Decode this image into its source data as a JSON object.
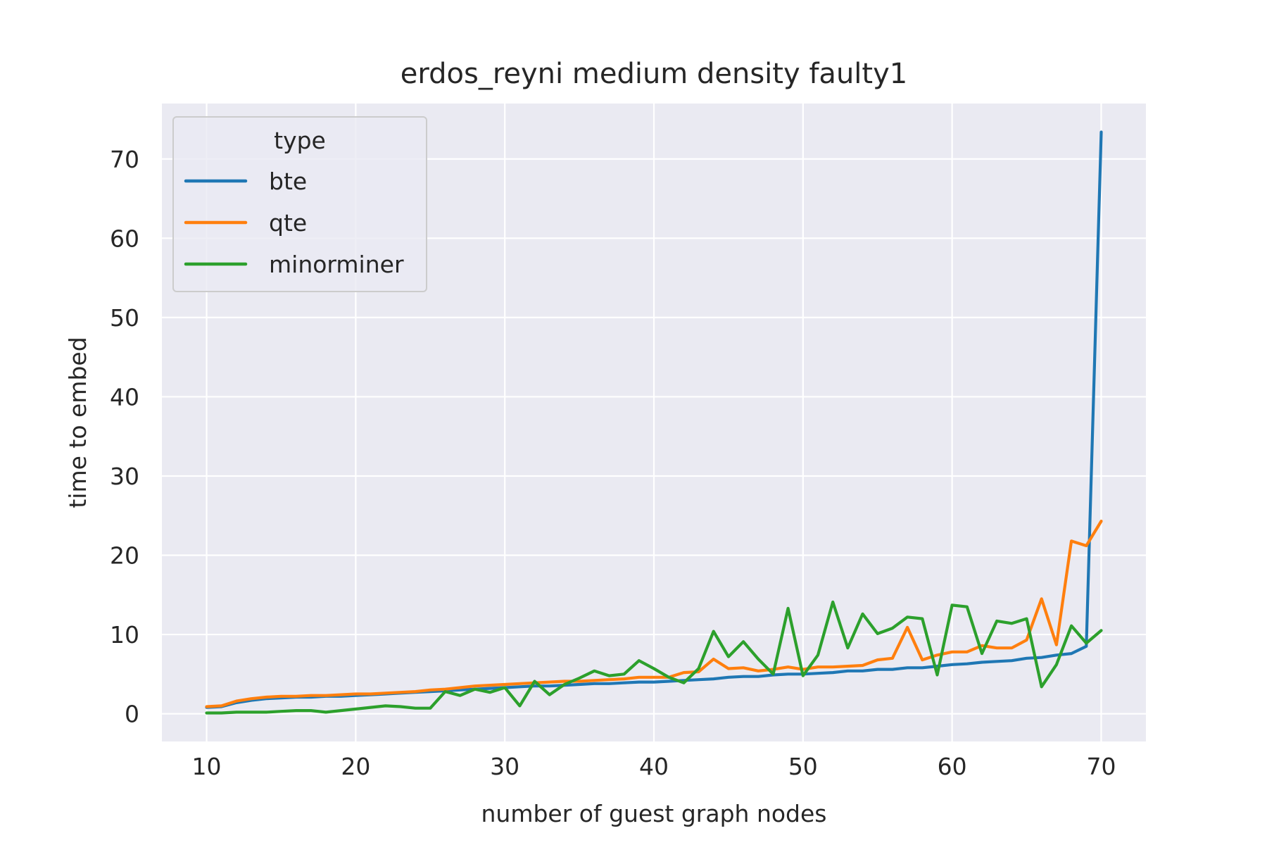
{
  "chart_data": {
    "type": "line",
    "title": "erdos_reyni medium density faulty1",
    "xlabel": "number of guest graph nodes",
    "ylabel": "time to embed",
    "xlim": [
      7,
      73
    ],
    "ylim": [
      -3.5,
      77
    ],
    "xticks": [
      10,
      20,
      30,
      40,
      50,
      60,
      70
    ],
    "yticks": [
      0,
      10,
      20,
      30,
      40,
      50,
      60,
      70
    ],
    "grid": true,
    "legend": {
      "title": "type",
      "placement": "top-left"
    },
    "x": [
      10,
      11,
      12,
      13,
      14,
      15,
      16,
      17,
      18,
      19,
      20,
      21,
      22,
      23,
      24,
      25,
      26,
      27,
      28,
      29,
      30,
      31,
      32,
      33,
      34,
      35,
      36,
      37,
      38,
      39,
      40,
      41,
      42,
      43,
      44,
      45,
      46,
      47,
      48,
      49,
      50,
      51,
      52,
      53,
      54,
      55,
      56,
      57,
      58,
      59,
      60,
      61,
      62,
      63,
      64,
      65,
      66,
      67,
      68,
      69,
      70
    ],
    "series": [
      {
        "name": "bte",
        "color": "#1f77b4",
        "values": [
          0.8,
          0.9,
          1.4,
          1.7,
          1.9,
          2.0,
          2.1,
          2.1,
          2.2,
          2.2,
          2.3,
          2.4,
          2.5,
          2.6,
          2.7,
          2.8,
          2.9,
          3.0,
          3.1,
          3.2,
          3.3,
          3.4,
          3.5,
          3.5,
          3.6,
          3.7,
          3.8,
          3.8,
          3.9,
          4.0,
          4.0,
          4.1,
          4.2,
          4.3,
          4.4,
          4.6,
          4.7,
          4.7,
          4.9,
          5.0,
          5.0,
          5.1,
          5.2,
          5.4,
          5.4,
          5.6,
          5.6,
          5.8,
          5.8,
          6.0,
          6.2,
          6.3,
          6.5,
          6.6,
          6.7,
          7.0,
          7.1,
          7.4,
          7.6,
          8.5,
          73.4
        ]
      },
      {
        "name": "qte",
        "color": "#ff7f0e",
        "values": [
          0.9,
          1.0,
          1.6,
          1.9,
          2.1,
          2.2,
          2.2,
          2.3,
          2.3,
          2.4,
          2.5,
          2.5,
          2.6,
          2.7,
          2.8,
          3.0,
          3.1,
          3.3,
          3.5,
          3.6,
          3.7,
          3.8,
          3.9,
          4.0,
          4.1,
          4.1,
          4.2,
          4.3,
          4.4,
          4.6,
          4.6,
          4.6,
          5.2,
          5.3,
          6.9,
          5.7,
          5.8,
          5.4,
          5.6,
          5.9,
          5.6,
          5.9,
          5.9,
          6.0,
          6.1,
          6.8,
          7.0,
          10.9,
          6.8,
          7.4,
          7.8,
          7.8,
          8.6,
          8.3,
          8.3,
          9.3,
          14.5,
          8.7,
          21.8,
          21.2,
          24.3
        ]
      },
      {
        "name": "minorminer",
        "color": "#2ca02c",
        "values": [
          0.1,
          0.1,
          0.2,
          0.2,
          0.2,
          0.3,
          0.4,
          0.4,
          0.2,
          0.4,
          0.6,
          0.8,
          1.0,
          0.9,
          0.7,
          0.7,
          2.8,
          2.3,
          3.1,
          2.7,
          3.3,
          1.0,
          4.1,
          2.4,
          3.7,
          4.5,
          5.4,
          4.8,
          5.0,
          6.7,
          5.7,
          4.6,
          3.9,
          5.7,
          10.4,
          7.2,
          9.1,
          6.9,
          5.0,
          13.3,
          4.8,
          7.4,
          14.1,
          8.3,
          12.6,
          10.1,
          10.8,
          12.2,
          12.0,
          4.9,
          13.7,
          13.5,
          7.6,
          11.7,
          11.4,
          12.0,
          3.4,
          6.2,
          11.1,
          8.9,
          10.5
        ]
      }
    ]
  }
}
